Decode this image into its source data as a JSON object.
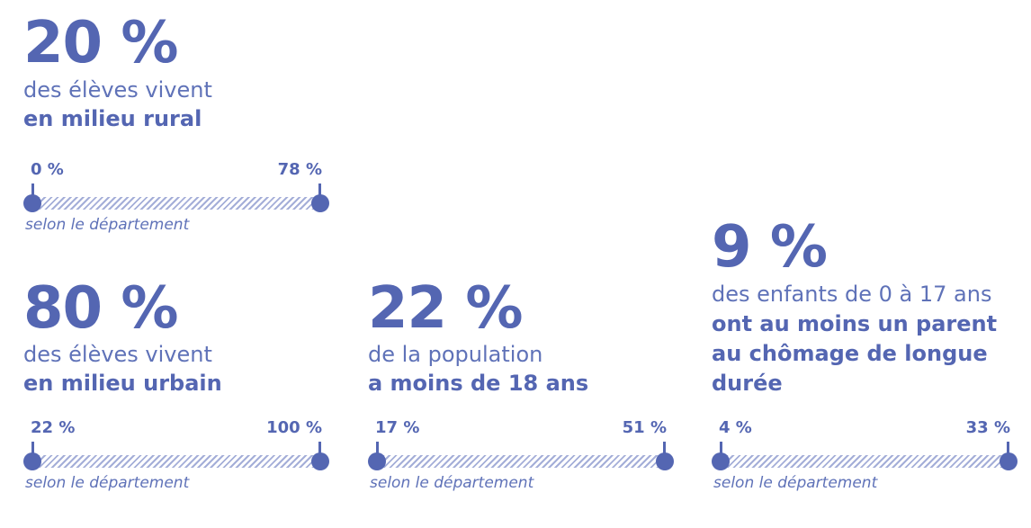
{
  "stats": {
    "rural": {
      "big": "20 %",
      "line1": "des élèves vivent",
      "line2": "en milieu rural",
      "range_min": "0 %",
      "range_max": "78 %",
      "caption": "selon le département"
    },
    "urban": {
      "big": "80 %",
      "line1": "des élèves vivent",
      "line2": "en milieu urbain",
      "range_min": "22 %",
      "range_max": "100 %",
      "caption": "selon le département"
    },
    "population": {
      "big": "22 %",
      "line1": "de la population",
      "line2": "a moins de 18 ans",
      "range_min": "17 %",
      "range_max": "51 %",
      "caption": "selon le département"
    },
    "unemployment": {
      "big": "9 %",
      "line1": "des enfants de 0 à 17 ans",
      "line2": "ont au moins un parent",
      "line3": "au chômage de longue",
      "line4": "durée",
      "range_min": "4 %",
      "range_max": "33 %",
      "caption": "selon le département"
    }
  },
  "colors": {
    "primary": "#5466b2",
    "text": "#5f72b8",
    "hatch": "#a4aed8"
  }
}
